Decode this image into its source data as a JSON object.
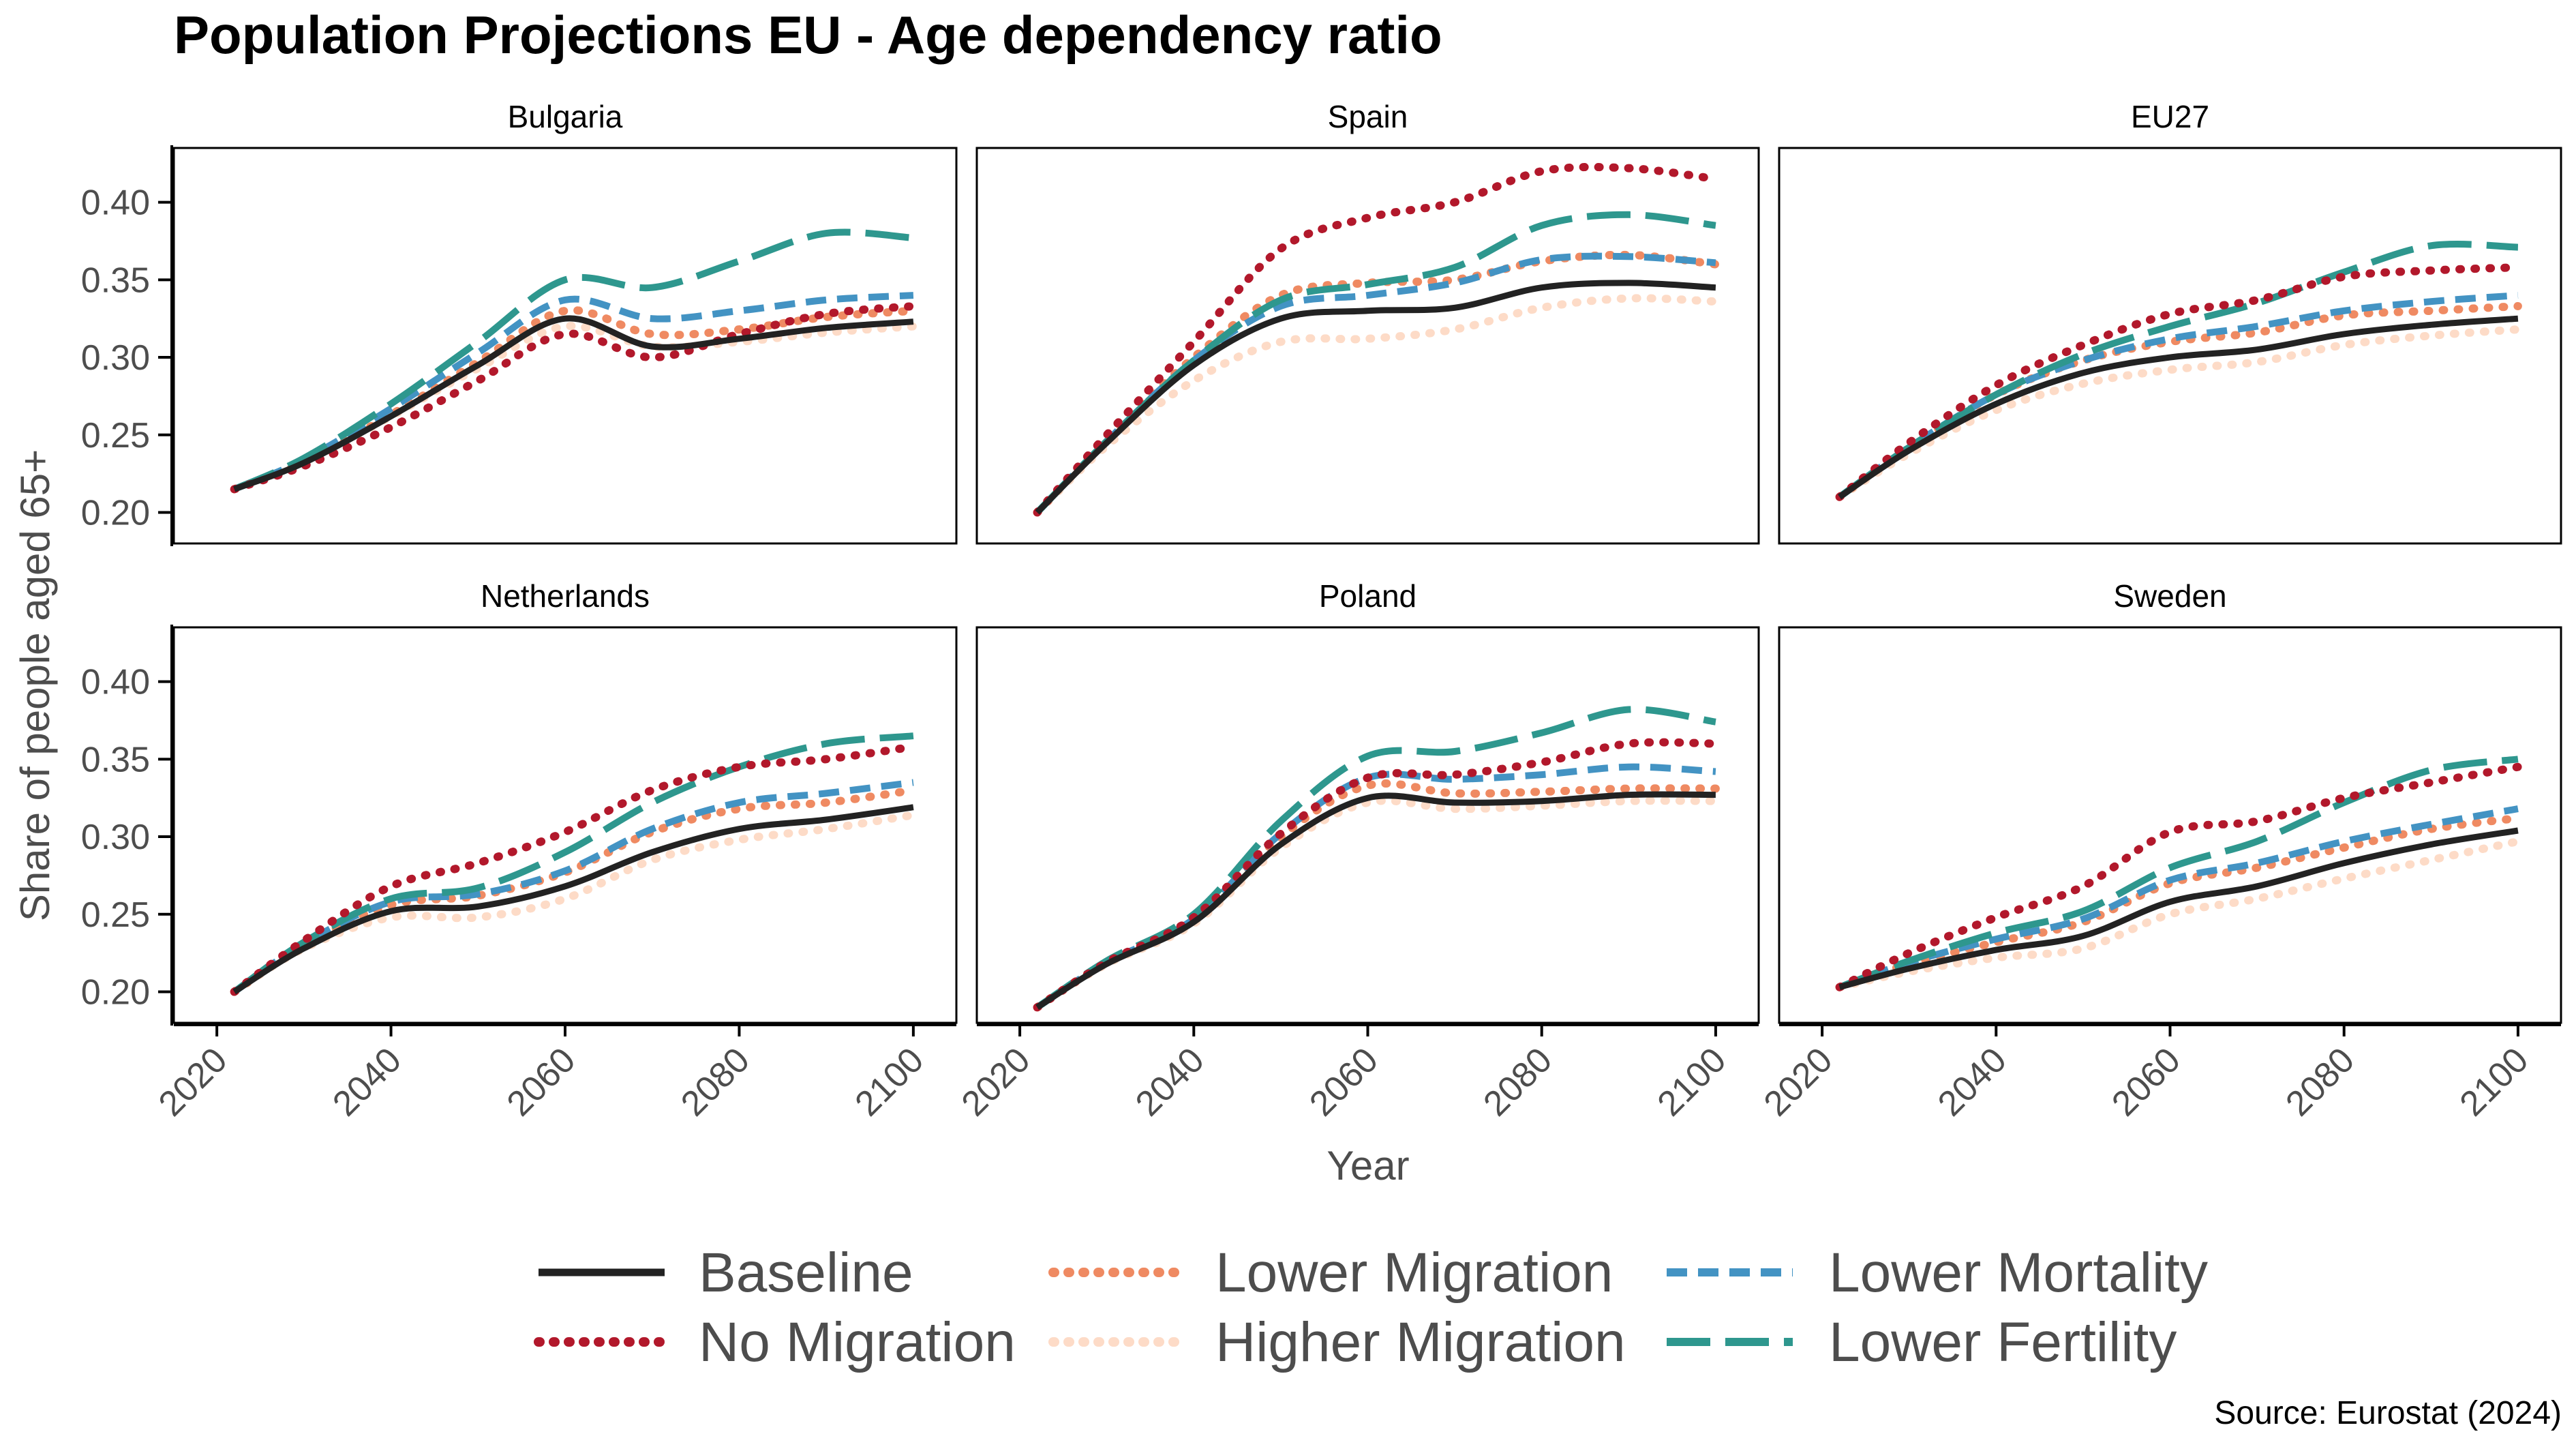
{
  "chart_data": {
    "type": "line",
    "title": "Population Projections EU - Age dependency ratio",
    "xlabel": "Year",
    "ylabel": "Share of people aged 65+",
    "xlim": [
      2020,
      2100
    ],
    "ylim": [
      0.18,
      0.435
    ],
    "xticks": [
      2020,
      2040,
      2060,
      2080,
      2100
    ],
    "yticks": [
      0.2,
      0.25,
      0.3,
      0.35,
      0.4
    ],
    "source": "Source: Eurostat (2024)",
    "legend": {
      "placement": "bottom",
      "entries": [
        "Baseline",
        "No Migration",
        "Lower Migration",
        "Higher Migration",
        "Lower Mortality",
        "Lower Fertility"
      ]
    },
    "series_styles": [
      {
        "name": "Baseline",
        "color": "#222222",
        "dash": "solid"
      },
      {
        "name": "No Migration",
        "color": "#b2182b",
        "dash": "dotted"
      },
      {
        "name": "Lower Migration",
        "color": "#ef8a62",
        "dash": "dotted"
      },
      {
        "name": "Higher Migration",
        "color": "#fddbc7",
        "dash": "dotted"
      },
      {
        "name": "Lower Mortality",
        "color": "#4393c3",
        "dash": "dashed"
      },
      {
        "name": "Lower Fertility",
        "color": "#2e978e",
        "dash": "longdash"
      }
    ],
    "x": [
      2022,
      2030,
      2040,
      2050,
      2060,
      2070,
      2080,
      2090,
      2100
    ],
    "panels": [
      {
        "name": "Bulgaria",
        "series": [
          {
            "name": "Baseline",
            "values": [
              0.215,
              0.232,
              0.262,
              0.295,
              0.325,
              0.307,
              0.312,
              0.319,
              0.323
            ]
          },
          {
            "name": "No Migration",
            "values": [
              0.215,
              0.23,
              0.255,
              0.285,
              0.315,
              0.3,
              0.315,
              0.328,
              0.333
            ]
          },
          {
            "name": "Lower Migration",
            "values": [
              0.215,
              0.232,
              0.263,
              0.297,
              0.33,
              0.315,
              0.318,
              0.326,
              0.33
            ]
          },
          {
            "name": "Higher Migration",
            "values": [
              0.215,
              0.232,
              0.262,
              0.293,
              0.32,
              0.307,
              0.31,
              0.316,
              0.32
            ]
          },
          {
            "name": "Lower Mortality",
            "values": [
              0.215,
              0.234,
              0.267,
              0.303,
              0.337,
              0.325,
              0.33,
              0.337,
              0.34
            ]
          },
          {
            "name": "Lower Fertility",
            "values": [
              0.215,
              0.235,
              0.27,
              0.31,
              0.35,
              0.345,
              0.362,
              0.38,
              0.377
            ]
          }
        ]
      },
      {
        "name": "Spain",
        "series": [
          {
            "name": "Baseline",
            "values": [
              0.2,
              0.245,
              0.295,
              0.325,
              0.33,
              0.332,
              0.345,
              0.348,
              0.345
            ]
          },
          {
            "name": "No Migration",
            "values": [
              0.2,
              0.25,
              0.31,
              0.37,
              0.39,
              0.4,
              0.42,
              0.422,
              0.415
            ]
          },
          {
            "name": "Lower Migration",
            "values": [
              0.2,
              0.247,
              0.3,
              0.34,
              0.348,
              0.35,
              0.362,
              0.366,
              0.36
            ]
          },
          {
            "name": "Higher Migration",
            "values": [
              0.2,
              0.243,
              0.285,
              0.31,
              0.312,
              0.318,
              0.332,
              0.338,
              0.336
            ]
          },
          {
            "name": "Lower Mortality",
            "values": [
              0.2,
              0.246,
              0.298,
              0.333,
              0.34,
              0.348,
              0.363,
              0.365,
              0.361
            ]
          },
          {
            "name": "Lower Fertility",
            "values": [
              0.2,
              0.246,
              0.298,
              0.337,
              0.347,
              0.358,
              0.385,
              0.392,
              0.385
            ]
          }
        ]
      },
      {
        "name": "EU27",
        "series": [
          {
            "name": "Baseline",
            "values": [
              0.21,
              0.24,
              0.27,
              0.29,
              0.3,
              0.305,
              0.315,
              0.321,
              0.325
            ]
          },
          {
            "name": "No Migration",
            "values": [
              0.21,
              0.245,
              0.282,
              0.308,
              0.328,
              0.337,
              0.352,
              0.356,
              0.358
            ]
          },
          {
            "name": "Lower Migration",
            "values": [
              0.21,
              0.242,
              0.276,
              0.298,
              0.31,
              0.316,
              0.327,
              0.33,
              0.333
            ]
          },
          {
            "name": "Higher Migration",
            "values": [
              0.21,
              0.238,
              0.266,
              0.283,
              0.292,
              0.297,
              0.308,
              0.314,
              0.318
            ]
          },
          {
            "name": "Lower Mortality",
            "values": [
              0.21,
              0.242,
              0.276,
              0.298,
              0.312,
              0.32,
              0.33,
              0.336,
              0.34
            ]
          },
          {
            "name": "Lower Fertility",
            "values": [
              0.21,
              0.242,
              0.276,
              0.302,
              0.32,
              0.335,
              0.355,
              0.372,
              0.371
            ]
          }
        ]
      },
      {
        "name": "Netherlands",
        "series": [
          {
            "name": "Baseline",
            "values": [
              0.2,
              0.228,
              0.252,
              0.255,
              0.268,
              0.29,
              0.305,
              0.311,
              0.319
            ]
          },
          {
            "name": "No Migration",
            "values": [
              0.2,
              0.233,
              0.268,
              0.283,
              0.303,
              0.33,
              0.345,
              0.35,
              0.358
            ]
          },
          {
            "name": "Lower Migration",
            "values": [
              0.2,
              0.23,
              0.256,
              0.262,
              0.277,
              0.303,
              0.318,
              0.322,
              0.33
            ]
          },
          {
            "name": "Higher Migration",
            "values": [
              0.2,
              0.228,
              0.248,
              0.248,
              0.26,
              0.285,
              0.298,
              0.305,
              0.314
            ]
          },
          {
            "name": "Lower Mortality",
            "values": [
              0.2,
              0.231,
              0.258,
              0.263,
              0.278,
              0.305,
              0.322,
              0.328,
              0.335
            ]
          },
          {
            "name": "Lower Fertility",
            "values": [
              0.2,
              0.232,
              0.26,
              0.267,
              0.29,
              0.322,
              0.345,
              0.36,
              0.365
            ]
          }
        ]
      },
      {
        "name": "Poland",
        "series": [
          {
            "name": "Baseline",
            "values": [
              0.19,
              0.218,
              0.245,
              0.295,
              0.325,
              0.322,
              0.323,
              0.327,
              0.327
            ]
          },
          {
            "name": "No Migration",
            "values": [
              0.19,
              0.219,
              0.248,
              0.302,
              0.338,
              0.34,
              0.348,
              0.36,
              0.36
            ]
          },
          {
            "name": "Lower Migration",
            "values": [
              0.19,
              0.219,
              0.246,
              0.3,
              0.333,
              0.328,
              0.329,
              0.331,
              0.331
            ]
          },
          {
            "name": "Higher Migration",
            "values": [
              0.19,
              0.218,
              0.244,
              0.293,
              0.322,
              0.318,
              0.32,
              0.323,
              0.323
            ]
          },
          {
            "name": "Lower Mortality",
            "values": [
              0.19,
              0.219,
              0.247,
              0.302,
              0.338,
              0.337,
              0.34,
              0.345,
              0.342
            ]
          },
          {
            "name": "Lower Fertility",
            "values": [
              0.19,
              0.22,
              0.25,
              0.31,
              0.352,
              0.355,
              0.367,
              0.382,
              0.374
            ]
          }
        ]
      },
      {
        "name": "Sweden",
        "series": [
          {
            "name": "Baseline",
            "values": [
              0.203,
              0.215,
              0.227,
              0.236,
              0.258,
              0.268,
              0.283,
              0.295,
              0.304
            ]
          },
          {
            "name": "No Migration",
            "values": [
              0.203,
              0.225,
              0.248,
              0.268,
              0.303,
              0.31,
              0.325,
              0.335,
              0.345
            ]
          },
          {
            "name": "Lower Migration",
            "values": [
              0.203,
              0.218,
              0.232,
              0.245,
              0.27,
              0.28,
              0.293,
              0.305,
              0.312
            ]
          },
          {
            "name": "Higher Migration",
            "values": [
              0.203,
              0.213,
              0.222,
              0.228,
              0.25,
              0.26,
              0.273,
              0.285,
              0.297
            ]
          },
          {
            "name": "Lower Mortality",
            "values": [
              0.203,
              0.219,
              0.234,
              0.247,
              0.272,
              0.283,
              0.297,
              0.308,
              0.318
            ]
          },
          {
            "name": "Lower Fertility",
            "values": [
              0.203,
              0.22,
              0.238,
              0.252,
              0.28,
              0.297,
              0.322,
              0.343,
              0.35
            ]
          }
        ]
      }
    ]
  }
}
